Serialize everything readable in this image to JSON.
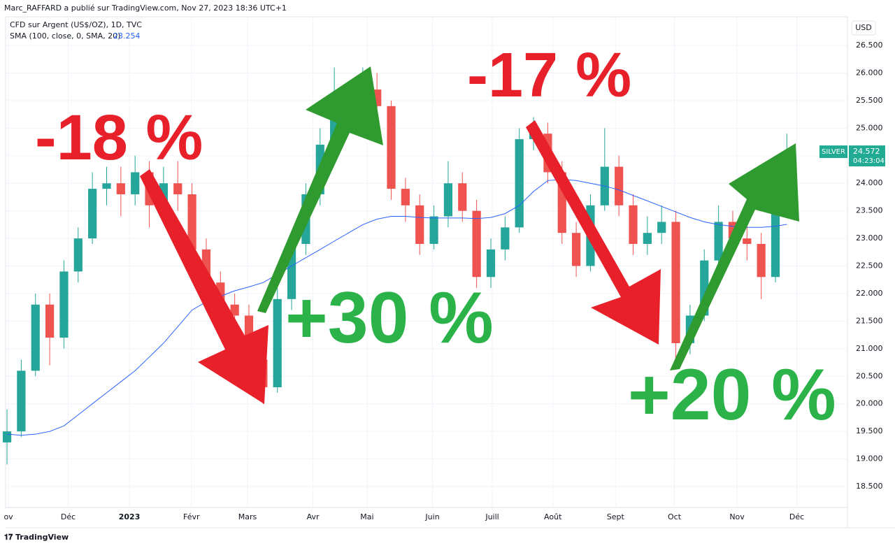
{
  "header": "Marc_RAFFARD a publié sur TradingView.com, Nov 27, 2023 18:36 UTC+1",
  "footer": "TradingView",
  "chart_data": {
    "type": "candlestick",
    "symbol": "CFD sur Argent (US$/OZ), 1D, TVC",
    "currency": "USD",
    "ticker": "SILVER",
    "countdown": "04:23:04",
    "up_color": "#26a69a",
    "down_color": "#ef5350",
    "x": [
      0,
      5,
      10,
      15,
      20,
      25,
      30,
      35,
      40,
      45,
      50,
      55,
      60,
      65,
      70,
      75,
      80,
      85,
      90,
      95,
      100,
      105,
      110,
      115,
      120,
      125,
      130,
      135,
      140,
      145,
      150,
      155,
      160,
      165,
      170,
      175,
      180,
      185,
      190,
      195,
      200,
      205,
      210,
      215,
      220,
      225,
      230,
      235,
      240,
      245,
      250,
      255,
      260,
      265,
      270,
      274
    ],
    "open": [
      19.3,
      19.5,
      20.6,
      21.8,
      21.2,
      22.4,
      23.0,
      23.9,
      24.0,
      23.8,
      24.2,
      23.6,
      24.0,
      23.8,
      22.8,
      22.2,
      21.8,
      21.6,
      20.8,
      20.3,
      21.9,
      22.9,
      23.8,
      24.7,
      25.3,
      25.2,
      25.7,
      25.4,
      23.9,
      23.6,
      22.9,
      23.4,
      24.0,
      23.5,
      22.3,
      22.8,
      23.2,
      24.8,
      24.9,
      24.2,
      23.1,
      22.5,
      23.6,
      24.3,
      23.6,
      22.9,
      23.1,
      23.3,
      21.1,
      21.6,
      22.6,
      23.3,
      23.0,
      22.9,
      22.3,
      23.9
    ],
    "high": [
      19.9,
      20.8,
      22.0,
      22.0,
      22.6,
      23.2,
      24.2,
      24.3,
      24.3,
      24.5,
      24.4,
      24.3,
      24.4,
      24.0,
      23.0,
      22.4,
      22.0,
      21.8,
      21.0,
      22.1,
      23.1,
      24.0,
      25.0,
      26.1,
      25.7,
      26.1,
      26.0,
      25.5,
      24.1,
      23.8,
      23.6,
      24.4,
      24.2,
      23.7,
      23.0,
      23.4,
      25.0,
      25.2,
      25.1,
      24.4,
      23.3,
      23.8,
      25.0,
      24.5,
      23.8,
      23.4,
      23.6,
      23.5,
      21.8,
      22.8,
      23.6,
      23.5,
      23.3,
      23.1,
      24.1,
      24.9
    ],
    "low": [
      18.9,
      19.4,
      20.5,
      20.7,
      21.0,
      22.2,
      22.9,
      23.6,
      23.4,
      23.6,
      23.2,
      23.4,
      23.5,
      22.6,
      22.0,
      21.6,
      21.3,
      20.6,
      20.0,
      20.2,
      21.7,
      22.7,
      23.6,
      24.5,
      24.9,
      25.0,
      25.1,
      23.7,
      23.3,
      22.7,
      22.8,
      23.2,
      23.3,
      22.1,
      22.1,
      22.6,
      23.1,
      24.6,
      24.0,
      22.9,
      22.3,
      22.4,
      23.5,
      23.4,
      22.7,
      22.7,
      22.9,
      20.8,
      20.9,
      21.5,
      22.5,
      22.8,
      22.6,
      21.9,
      22.2,
      23.7
    ],
    "close": [
      19.5,
      20.6,
      21.8,
      21.2,
      22.4,
      23.0,
      23.9,
      24.0,
      23.8,
      24.2,
      23.6,
      24.0,
      23.8,
      22.8,
      22.2,
      21.8,
      21.6,
      20.8,
      20.3,
      21.9,
      22.9,
      23.8,
      24.7,
      25.3,
      25.2,
      25.7,
      25.4,
      23.9,
      23.6,
      22.9,
      23.4,
      24.0,
      23.5,
      22.3,
      22.8,
      23.2,
      24.8,
      24.9,
      24.2,
      23.1,
      22.5,
      23.6,
      24.3,
      23.6,
      22.9,
      23.1,
      23.3,
      21.1,
      21.6,
      22.6,
      23.3,
      23.0,
      22.9,
      22.3,
      23.9,
      24.572
    ],
    "sma": {
      "name": "SMA (100, close, 0, SMA, 20)",
      "color": "#2962ff",
      "values": [
        19.45,
        19.43,
        19.45,
        19.5,
        19.6,
        19.8,
        20.0,
        20.2,
        20.4,
        20.6,
        20.85,
        21.1,
        21.4,
        21.7,
        21.85,
        21.95,
        22.05,
        22.12,
        22.2,
        22.35,
        22.5,
        22.65,
        22.8,
        22.95,
        23.1,
        23.25,
        23.35,
        23.4,
        23.4,
        23.38,
        23.37,
        23.37,
        23.37,
        23.36,
        23.38,
        23.45,
        23.6,
        23.85,
        24.05,
        24.07,
        24.05,
        24.0,
        23.95,
        23.88,
        23.78,
        23.68,
        23.58,
        23.48,
        23.38,
        23.3,
        23.25,
        23.22,
        23.2,
        23.2,
        23.22,
        23.254
      ]
    },
    "xlim": [
      -0.5,
      295.3
    ],
    "xticks": [
      {
        "value": 0.5,
        "label": "ov"
      },
      {
        "value": 21.5,
        "label": "Déc"
      },
      {
        "value": 43,
        "label": "2023"
      },
      {
        "value": 64.8,
        "label": "Févr"
      },
      {
        "value": 84.5,
        "label": "Mars"
      },
      {
        "value": 107.5,
        "label": "Avr"
      },
      {
        "value": 126.5,
        "label": "Mai"
      },
      {
        "value": 149.5,
        "label": "Juin"
      },
      {
        "value": 170.5,
        "label": "Juill"
      },
      {
        "value": 191.8,
        "label": "Août"
      },
      {
        "value": 213.8,
        "label": "Sept"
      },
      {
        "value": 234.5,
        "label": "Oct"
      },
      {
        "value": 256.5,
        "label": "Nov"
      },
      {
        "value": 277.5,
        "label": "Déc"
      }
    ],
    "ylim": [
      18.12,
      27.02
    ],
    "yticks": [
      {
        "value": 18.5,
        "label": "18.500"
      },
      {
        "value": 19,
        "label": "19.000"
      },
      {
        "value": 19.5,
        "label": "19.500"
      },
      {
        "value": 20,
        "label": "20.000"
      },
      {
        "value": 20.5,
        "label": "20.500"
      },
      {
        "value": 21,
        "label": "21.000"
      },
      {
        "value": 21.5,
        "label": "21.500"
      },
      {
        "value": 22,
        "label": "22.000"
      },
      {
        "value": 22.5,
        "label": "22.500"
      },
      {
        "value": 23,
        "label": "23.000"
      },
      {
        "value": 23.5,
        "label": "23.500"
      },
      {
        "value": 24,
        "label": "24.000"
      },
      {
        "value": 24.5,
        "label": "24.500"
      },
      {
        "value": 25,
        "label": "25.000"
      },
      {
        "value": 25.5,
        "label": "25.500"
      },
      {
        "value": 26,
        "label": "26.000"
      },
      {
        "value": 26.5,
        "label": "26.500"
      }
    ],
    "grid": true,
    "annotations": [
      "-18 %",
      "+30 %",
      "-17 %",
      "+20 %"
    ]
  }
}
